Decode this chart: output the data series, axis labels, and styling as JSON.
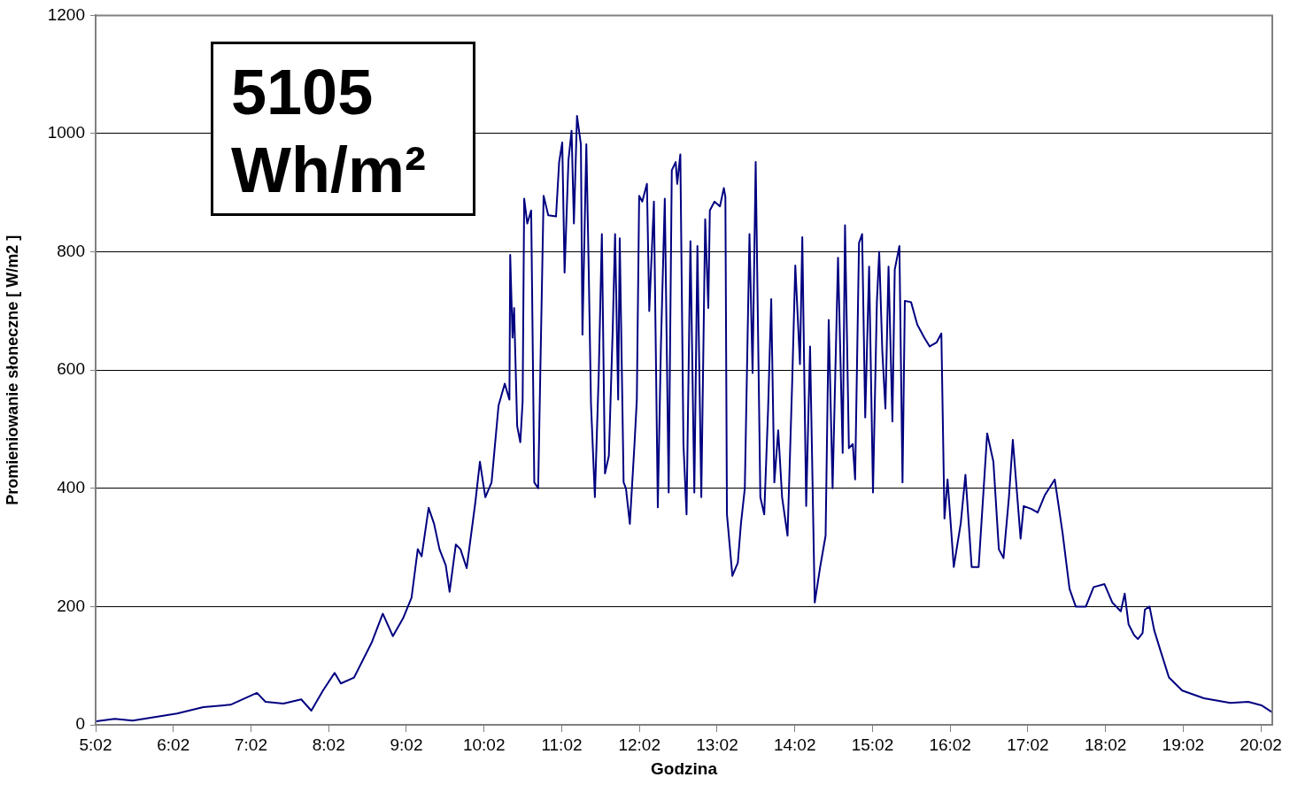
{
  "chart_data": {
    "type": "line",
    "xlabel": "Godzina",
    "ylabel": "Promieniowanie słoneczne [ W/m2 ]",
    "annotations": [
      "5105 Wh/m²"
    ],
    "color": "#000080",
    "marker": "none",
    "grid": "y",
    "legend": false,
    "xlim": [
      5.0333,
      20.18
    ],
    "xticks": [
      {
        "value": 5.0333,
        "label": "5:02"
      },
      {
        "value": 6.0333,
        "label": "6:02"
      },
      {
        "value": 7.0333,
        "label": "7:02"
      },
      {
        "value": 8.0333,
        "label": "8:02"
      },
      {
        "value": 9.0333,
        "label": "9:02"
      },
      {
        "value": 10.0333,
        "label": "10:02"
      },
      {
        "value": 11.0333,
        "label": "11:02"
      },
      {
        "value": 12.0333,
        "label": "12:02"
      },
      {
        "value": 13.0333,
        "label": "13:02"
      },
      {
        "value": 14.0333,
        "label": "14:02"
      },
      {
        "value": 15.0333,
        "label": "15:02"
      },
      {
        "value": 16.0333,
        "label": "16:02"
      },
      {
        "value": 17.0333,
        "label": "17:02"
      },
      {
        "value": 18.0333,
        "label": "18:02"
      },
      {
        "value": 19.0333,
        "label": "19:02"
      },
      {
        "value": 20.0333,
        "label": "20:02"
      }
    ],
    "ylim": [
      0,
      1200
    ],
    "yticks": [
      0,
      200,
      400,
      600,
      800,
      1000,
      1200
    ],
    "x": [
      5.04,
      5.28,
      5.51,
      6.08,
      6.42,
      6.77,
      7.11,
      7.22,
      7.45,
      7.68,
      7.81,
      7.96,
      8.11,
      8.19,
      8.36,
      8.59,
      8.73,
      8.86,
      8.99,
      9.1,
      9.18,
      9.23,
      9.32,
      9.39,
      9.46,
      9.54,
      9.59,
      9.67,
      9.73,
      9.81,
      9.92,
      9.98,
      10.05,
      10.13,
      10.22,
      10.3,
      10.36,
      10.37,
      10.4,
      10.42,
      10.46,
      10.5,
      10.53,
      10.55,
      10.59,
      10.64,
      10.68,
      10.73,
      10.8,
      10.86,
      10.96,
      11.0,
      11.04,
      11.07,
      11.12,
      11.16,
      11.19,
      11.23,
      11.28,
      11.3,
      11.35,
      11.38,
      11.41,
      11.46,
      11.51,
      11.55,
      11.59,
      11.64,
      11.69,
      11.72,
      11.76,
      11.78,
      11.83,
      11.86,
      11.91,
      11.97,
      12.0,
      12.03,
      12.07,
      12.13,
      12.16,
      12.22,
      12.27,
      12.31,
      12.36,
      12.41,
      12.45,
      12.5,
      12.52,
      12.56,
      12.6,
      12.64,
      12.69,
      12.74,
      12.78,
      12.83,
      12.88,
      12.92,
      12.94,
      13.0,
      13.07,
      13.12,
      13.14,
      13.16,
      13.23,
      13.3,
      13.34,
      13.39,
      13.45,
      13.49,
      13.53,
      13.59,
      13.64,
      13.69,
      13.73,
      13.77,
      13.82,
      13.87,
      13.94,
      14.0,
      14.04,
      14.1,
      14.13,
      14.18,
      14.23,
      14.29,
      14.36,
      14.43,
      14.47,
      14.52,
      14.59,
      14.65,
      14.68,
      14.73,
      14.78,
      14.81,
      14.86,
      14.9,
      14.94,
      14.99,
      15.04,
      15.09,
      15.12,
      15.16,
      15.2,
      15.24,
      15.29,
      15.32,
      15.38,
      15.42,
      15.45,
      15.53,
      15.61,
      15.7,
      15.77,
      15.86,
      15.92,
      15.96,
      16.0,
      16.08,
      16.17,
      16.23,
      16.31,
      16.4,
      16.51,
      16.59,
      16.66,
      16.72,
      16.79,
      16.84,
      16.88,
      16.94,
      16.98,
      17.08,
      17.16,
      17.25,
      17.38,
      17.48,
      17.57,
      17.65,
      17.78,
      17.88,
      18.02,
      18.12,
      18.23,
      18.28,
      18.33,
      18.4,
      18.45,
      18.51,
      18.54,
      18.6,
      18.66,
      18.73,
      18.85,
      19.02,
      19.3,
      19.64,
      19.87,
      20.04,
      20.18
    ],
    "values": [
      6,
      10,
      7,
      19,
      30,
      34,
      54,
      39,
      36,
      43,
      24,
      58,
      88,
      70,
      80,
      140,
      188,
      150,
      180,
      215,
      297,
      285,
      367,
      340,
      297,
      270,
      225,
      305,
      297,
      265,
      375,
      445,
      385,
      410,
      540,
      577,
      550,
      795,
      655,
      705,
      505,
      478,
      547,
      890,
      848,
      870,
      410,
      400,
      895,
      862,
      860,
      952,
      985,
      765,
      955,
      1005,
      848,
      1030,
      982,
      660,
      982,
      775,
      543,
      385,
      595,
      830,
      425,
      455,
      670,
      830,
      550,
      823,
      410,
      400,
      340,
      475,
      550,
      895,
      885,
      915,
      700,
      885,
      368,
      640,
      890,
      393,
      938,
      952,
      915,
      965,
      475,
      356,
      818,
      393,
      810,
      385,
      855,
      705,
      870,
      885,
      877,
      908,
      893,
      356,
      252,
      274,
      340,
      400,
      830,
      595,
      952,
      385,
      356,
      535,
      720,
      410,
      498,
      385,
      320,
      580,
      777,
      610,
      825,
      370,
      640,
      207,
      267,
      320,
      685,
      400,
      790,
      460,
      845,
      468,
      475,
      415,
      815,
      830,
      520,
      775,
      393,
      715,
      800,
      632,
      535,
      775,
      513,
      770,
      810,
      410,
      717,
      715,
      677,
      655,
      640,
      647,
      662,
      349,
      415,
      267,
      341,
      423,
      267,
      267,
      493,
      445,
      297,
      282,
      385,
      482,
      415,
      315,
      370,
      365,
      359,
      388,
      415,
      325,
      230,
      200,
      200,
      233,
      238,
      207,
      192,
      222,
      170,
      152,
      145,
      155,
      195,
      200,
      160,
      130,
      80,
      58,
      45,
      37,
      39,
      33,
      21
    ]
  }
}
